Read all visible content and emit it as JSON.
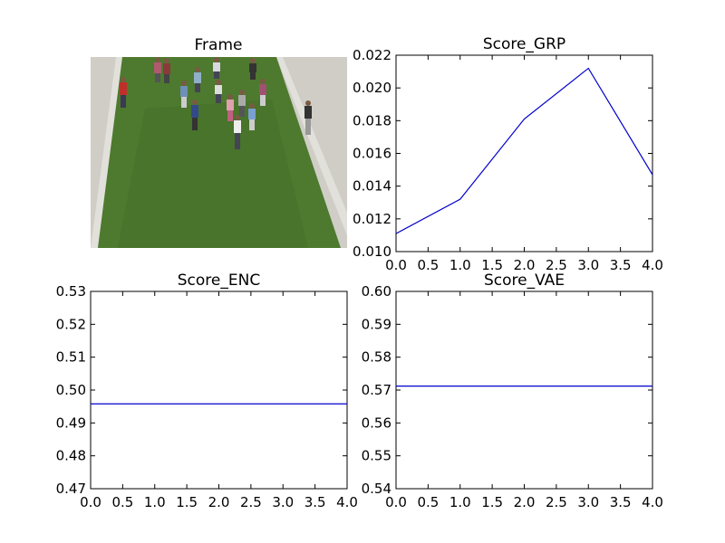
{
  "frame_panel": {
    "title": "Frame",
    "colors": {
      "grass": "#4d7a2e",
      "grass_dark": "#3f6a26",
      "pavement": "#cfcdc6",
      "curb": "#e2e0da"
    }
  },
  "chart_data": [
    {
      "id": "grp",
      "type": "line",
      "title": "Score_GRP",
      "x": [
        0,
        1,
        2,
        3,
        4
      ],
      "series": [
        {
          "values": [
            0.0111,
            0.0132,
            0.0181,
            0.0212,
            0.0147
          ],
          "color": "#0000cc"
        }
      ],
      "xlim": [
        0.0,
        4.0
      ],
      "ylim": [
        0.01,
        0.022
      ],
      "xticks": [
        "0.0",
        "0.5",
        "1.0",
        "1.5",
        "2.0",
        "2.5",
        "3.0",
        "3.5",
        "4.0"
      ],
      "yticks": [
        "0.010",
        "0.012",
        "0.014",
        "0.016",
        "0.018",
        "0.020",
        "0.022"
      ],
      "grid": false,
      "xlabel": "",
      "ylabel": ""
    },
    {
      "id": "enc",
      "type": "line",
      "title": "Score_ENC",
      "x": [
        0,
        1,
        2,
        3,
        4
      ],
      "series": [
        {
          "values": [
            0.4958,
            0.4958,
            0.4958,
            0.4958,
            0.4958
          ],
          "color": "#0000cc"
        }
      ],
      "xlim": [
        0.0,
        4.0
      ],
      "ylim": [
        0.47,
        0.53
      ],
      "xticks": [
        "0.0",
        "0.5",
        "1.0",
        "1.5",
        "2.0",
        "2.5",
        "3.0",
        "3.5",
        "4.0"
      ],
      "yticks": [
        "0.47",
        "0.48",
        "0.49",
        "0.50",
        "0.51",
        "0.52",
        "0.53"
      ],
      "grid": false,
      "xlabel": "",
      "ylabel": ""
    },
    {
      "id": "vae",
      "type": "line",
      "title": "Score_VAE",
      "x": [
        0,
        1,
        2,
        3,
        4
      ],
      "series": [
        {
          "values": [
            0.5712,
            0.5712,
            0.5712,
            0.5712,
            0.5712
          ],
          "color": "#0000cc"
        }
      ],
      "xlim": [
        0.0,
        4.0
      ],
      "ylim": [
        0.54,
        0.6
      ],
      "xticks": [
        "0.0",
        "0.5",
        "1.0",
        "1.5",
        "2.0",
        "2.5",
        "3.0",
        "3.5",
        "4.0"
      ],
      "yticks": [
        "0.54",
        "0.55",
        "0.56",
        "0.57",
        "0.58",
        "0.59",
        "0.60"
      ],
      "grid": false,
      "xlabel": "",
      "ylabel": ""
    }
  ]
}
